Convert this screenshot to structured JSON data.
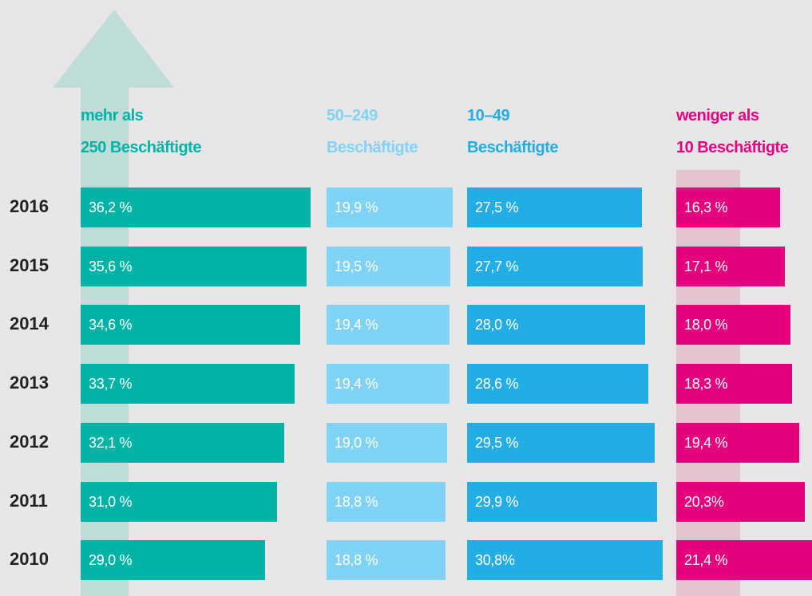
{
  "chart_data": {
    "type": "bar",
    "categories": [
      "2016",
      "2015",
      "2014",
      "2013",
      "2012",
      "2011",
      "2010"
    ],
    "series": [
      {
        "name": "mehr als\n250 Beschäftigte",
        "color": "#00b3a6",
        "values": [
          36.2,
          35.6,
          34.6,
          33.7,
          32.1,
          31.0,
          29.0
        ],
        "value_labels": [
          "36,2 %",
          "35,6 %",
          "34,6 %",
          "33,7 %",
          "32,1 %",
          "31,0 %",
          "29,0 %"
        ]
      },
      {
        "name": "50–249\nBeschäftigte",
        "color": "#80d3f4",
        "values": [
          19.9,
          19.5,
          19.4,
          19.4,
          19.0,
          18.8,
          18.8
        ],
        "value_labels": [
          "19,9 %",
          "19,5 %",
          "19,4 %",
          "19,4 %",
          "19,0 %",
          "18,8 %",
          "18,8 %"
        ]
      },
      {
        "name": "10–49\nBeschäftigte",
        "color": "#22ade4",
        "values": [
          27.5,
          27.7,
          28.0,
          28.6,
          29.5,
          29.9,
          30.8
        ],
        "value_labels": [
          "27,5 %",
          "27,7 %",
          "28,0 %",
          "28,6 %",
          "29,5 %",
          "29,9 %",
          "30,8%"
        ]
      },
      {
        "name": "weniger als\n10 Beschäftigte",
        "color": "#e6007e",
        "values": [
          16.3,
          17.1,
          18.0,
          18.3,
          19.4,
          20.3,
          21.4
        ],
        "value_labels": [
          "16,3 %",
          "17,1 %",
          "18,0 %",
          "18,3 %",
          "19,4 %",
          "20,3%",
          "21,4 %"
        ]
      }
    ]
  }
}
